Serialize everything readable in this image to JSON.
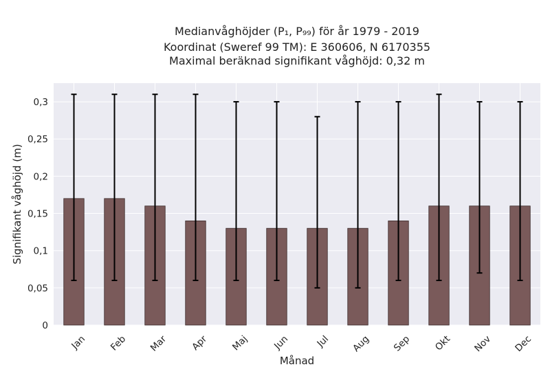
{
  "chart_data": {
    "type": "bar",
    "title": [
      "Medianvåghöjder (P₁, P₉₉) för år 1979 - 2019",
      "Koordinat (Sweref 99 TM): E 360606, N 6170355",
      "Maximal beräknad signifikant våghöjd: 0,32 m"
    ],
    "xlabel": "Månad",
    "ylabel": "Signifikant våghöjd (m)",
    "categories": [
      "Jan",
      "Feb",
      "Mar",
      "Apr",
      "Maj",
      "Jun",
      "Jul",
      "Aug",
      "Sep",
      "Okt",
      "Nov",
      "Dec"
    ],
    "values": [
      0.17,
      0.17,
      0.16,
      0.14,
      0.13,
      0.13,
      0.13,
      0.13,
      0.14,
      0.16,
      0.16,
      0.16
    ],
    "error_low": [
      0.06,
      0.06,
      0.06,
      0.06,
      0.06,
      0.06,
      0.05,
      0.05,
      0.06,
      0.06,
      0.07,
      0.06
    ],
    "error_high": [
      0.31,
      0.31,
      0.31,
      0.31,
      0.3,
      0.3,
      0.28,
      0.3,
      0.3,
      0.31,
      0.3,
      0.3
    ],
    "ylim": [
      0,
      0.325
    ],
    "yticks": [
      0,
      0.05,
      0.1,
      0.15,
      0.2,
      0.25,
      0.3
    ],
    "ytick_labels": [
      "0",
      "0,05",
      "0,1",
      "0,15",
      "0,2",
      "0,25",
      "0,3"
    ],
    "grid": true,
    "colors": {
      "bar": "#7a5a5a",
      "bar_edge": "#3a2a2a",
      "plot_bg": "#ebebf2",
      "grid": "#ffffff",
      "error": "#000000"
    }
  }
}
